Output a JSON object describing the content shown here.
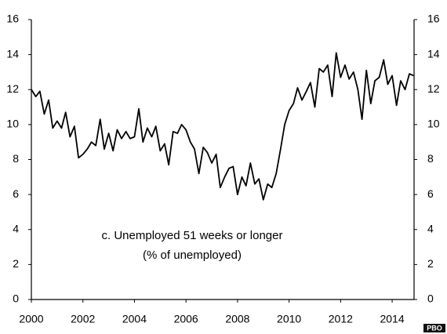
{
  "chart_data": {
    "type": "line",
    "annotations": [
      "c. Unemployed 51 weeks or longer",
      "(% of unemployed)"
    ],
    "watermark": "PBO",
    "color": "#000000",
    "x": [
      2000,
      2000.17,
      2000.33,
      2000.5,
      2000.67,
      2000.83,
      2001,
      2001.17,
      2001.33,
      2001.5,
      2001.67,
      2001.83,
      2002,
      2002.17,
      2002.33,
      2002.5,
      2002.67,
      2002.83,
      2003,
      2003.17,
      2003.33,
      2003.5,
      2003.67,
      2003.83,
      2004,
      2004.17,
      2004.33,
      2004.5,
      2004.67,
      2004.83,
      2005,
      2005.17,
      2005.33,
      2005.5,
      2005.67,
      2005.83,
      2006,
      2006.17,
      2006.33,
      2006.5,
      2006.67,
      2006.83,
      2007,
      2007.17,
      2007.33,
      2007.5,
      2007.67,
      2007.83,
      2008,
      2008.17,
      2008.33,
      2008.5,
      2008.67,
      2008.83,
      2009,
      2009.17,
      2009.33,
      2009.5,
      2009.67,
      2009.83,
      2010,
      2010.17,
      2010.33,
      2010.5,
      2010.67,
      2010.83,
      2011,
      2011.17,
      2011.33,
      2011.5,
      2011.67,
      2011.83,
      2012,
      2012.17,
      2012.33,
      2012.5,
      2012.67,
      2012.83,
      2013,
      2013.17,
      2013.33,
      2013.5,
      2013.67,
      2013.83,
      2014,
      2014.17,
      2014.33,
      2014.5,
      2014.67,
      2014.83
    ],
    "values": [
      12.0,
      11.6,
      11.9,
      10.6,
      11.4,
      9.8,
      10.2,
      9.8,
      10.7,
      9.3,
      9.9,
      8.1,
      8.3,
      8.6,
      9.0,
      8.8,
      10.3,
      8.6,
      9.5,
      8.5,
      9.7,
      9.2,
      9.6,
      9.2,
      9.3,
      10.9,
      9.0,
      9.8,
      9.3,
      9.9,
      8.5,
      8.9,
      7.7,
      9.6,
      9.5,
      10.0,
      9.7,
      9.0,
      8.6,
      7.2,
      8.7,
      8.4,
      7.8,
      8.3,
      6.4,
      7.0,
      7.5,
      7.6,
      6.0,
      7.0,
      6.5,
      7.8,
      6.6,
      6.9,
      5.7,
      6.6,
      6.4,
      7.2,
      8.6,
      10.0,
      10.8,
      11.2,
      12.1,
      11.4,
      11.9,
      12.4,
      11.0,
      13.2,
      13.0,
      13.4,
      11.6,
      14.1,
      12.7,
      13.4,
      12.6,
      13.0,
      12.0,
      10.3,
      13.1,
      11.2,
      12.5,
      12.7,
      13.7,
      12.3,
      12.8,
      11.1,
      12.5,
      12.0,
      12.9,
      12.8
    ],
    "xlim": [
      2000,
      2014.85
    ],
    "xticks": [
      2000,
      2002,
      2004,
      2006,
      2008,
      2010,
      2012,
      2014
    ],
    "ylim": [
      0,
      16
    ],
    "yticks": [
      0,
      2,
      4,
      6,
      8,
      10,
      12,
      14,
      16
    ],
    "y2lim": [
      0,
      16
    ],
    "y2ticks": [
      0,
      2,
      4,
      6,
      8,
      10,
      12,
      14,
      16
    ],
    "grid": false
  }
}
